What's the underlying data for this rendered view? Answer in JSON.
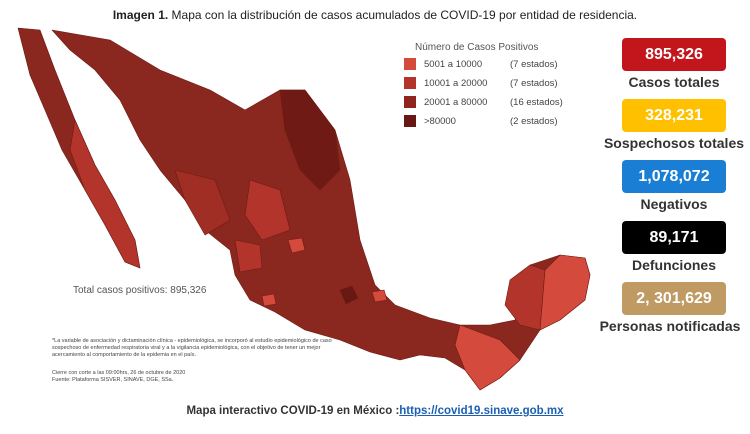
{
  "title": {
    "bold": "Imagen 1.",
    "text": "Mapa con la distribución de casos acumulados de COVID-19 por entidad de residencia."
  },
  "legend": {
    "title": "Número de Casos Positivos",
    "items": [
      {
        "range": "5001 a  10000",
        "count": "(7 estados)",
        "color": "#d44a3c"
      },
      {
        "range": "10001 a  20000",
        "count": "(7 estados)",
        "color": "#b3342b"
      },
      {
        "range": "20001 a  80000",
        "count": "(16 estados)",
        "color": "#8e261e"
      },
      {
        "range": ">80000",
        "count": "(2 estados)",
        "color": "#681812"
      }
    ]
  },
  "map_total": "Total casos positivos: 895,326",
  "stats": [
    {
      "value": "895,326",
      "label": "Casos totales",
      "color": "#c3161c",
      "text_color": "#ffffff"
    },
    {
      "value": "328,231",
      "label": "Sospechosos totales",
      "color": "#ffc000",
      "text_color": "#ffffff"
    },
    {
      "value": "1,078,072",
      "label": "Negativos",
      "color": "#1a7fd4",
      "text_color": "#ffffff"
    },
    {
      "value": "89,171",
      "label": "Defunciones",
      "color": "#000000",
      "text_color": "#ffffff"
    },
    {
      "value": "2, 301,629",
      "label": "Personas notificadas",
      "color": "#c09a63",
      "text_color": "#ffffff"
    }
  ],
  "note": "*La variable de asociación y dictaminación clínica - epidemiológica, se incorporó al estudio epidemiológico de caso sospechoso de enfermedad respiratoria viral y a la vigilancia epidemiológica, con el objetivo de tener un mejor acercamiento al comportamiento de la epidemia en el país.",
  "cierre": "Cierre con corte a las 09:00hrs, 26 de octubre de 2020",
  "fuente": "Fuente: Plataforma SISVER, SINAVE, DGE, SSa.",
  "footer": {
    "text": "Mapa interactivo COVID-19 en México :",
    "link": "https://covid19.sinave.gob.mx"
  }
}
